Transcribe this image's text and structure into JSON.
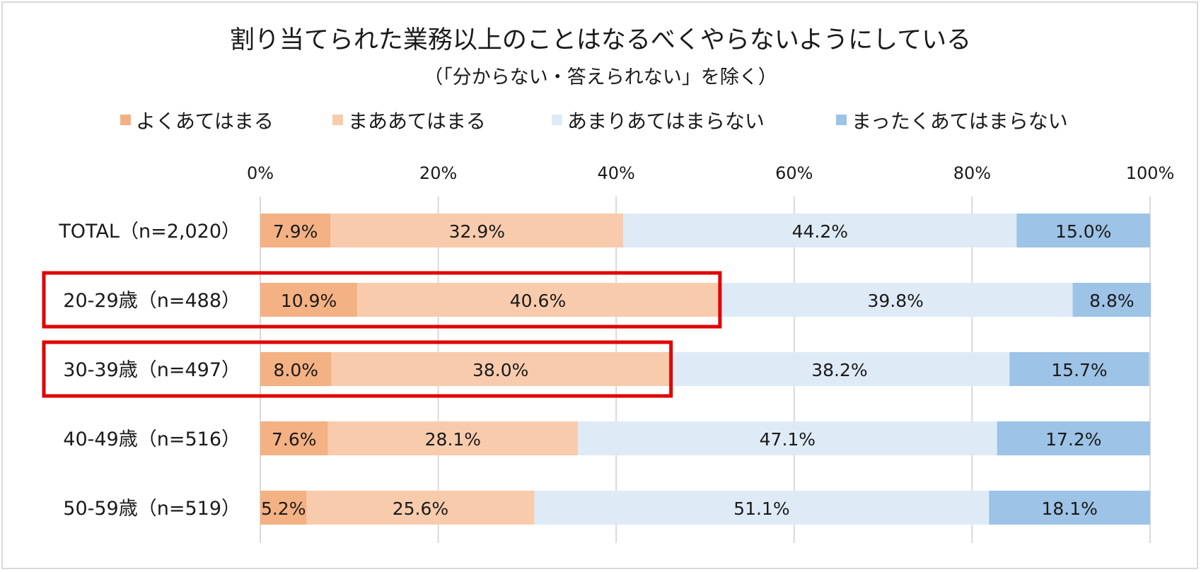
{
  "chart_data": {
    "type": "bar",
    "stacked": true,
    "orientation": "horizontal",
    "title": "割り当てられた業務以上のことはなるべくやらないようにしている",
    "subtitle": "（「分からない・答えられない」を除く）",
    "categories": [
      "TOTAL（n=2,020）",
      "20-29歳（n=488）",
      "30-39歳（n=497）",
      "40-49歳（n=516）",
      "50-59歳（n=519）"
    ],
    "series": [
      {
        "name": "よくあてはまる",
        "values": [
          7.9,
          10.9,
          8.0,
          7.6,
          5.2
        ],
        "color": "#f4b183"
      },
      {
        "name": "まああてはまる",
        "values": [
          32.9,
          40.6,
          38.0,
          28.1,
          25.6
        ],
        "color": "#f8cbad"
      },
      {
        "name": "あまりあてはまらない",
        "values": [
          44.2,
          39.8,
          38.2,
          47.1,
          51.1
        ],
        "color": "#deebf7"
      },
      {
        "name": "まったくあてはまらない",
        "values": [
          15.0,
          8.8,
          15.7,
          17.2,
          18.1
        ],
        "color": "#9dc3e6"
      }
    ],
    "value_labels": [
      [
        "7.9%",
        "32.9%",
        "44.2%",
        "15.0%"
      ],
      [
        "10.9%",
        "40.6%",
        "39.8%",
        "8.8%"
      ],
      [
        "8.0%",
        "38.0%",
        "38.2%",
        "15.7%"
      ],
      [
        "7.6%",
        "28.1%",
        "47.1%",
        "17.2%"
      ],
      [
        "5.2%",
        "25.6%",
        "51.1%",
        "18.1%"
      ]
    ],
    "x_ticks": [
      "0%",
      "20%",
      "40%",
      "60%",
      "80%",
      "100%"
    ],
    "xlim": [
      0,
      100
    ],
    "grid": true,
    "legend_position": "top",
    "highlighted_categories": [
      "20-29歳（n=488）",
      "30-39歳（n=497）"
    ],
    "highlight_color": "#e00000"
  }
}
